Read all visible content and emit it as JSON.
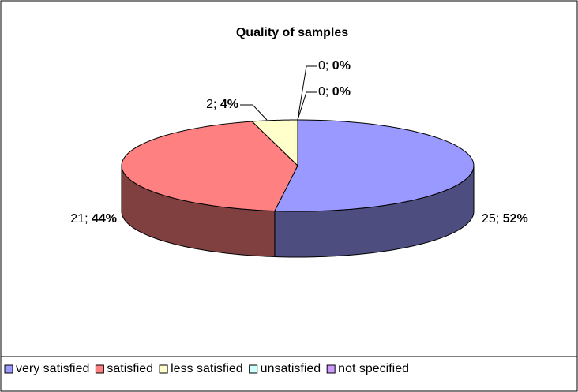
{
  "chart_data": {
    "type": "pie3d",
    "title": "Quality of samples",
    "categories": [
      "very satisfied",
      "satisfied",
      "less satisfied",
      "unsatisfied",
      "not specified"
    ],
    "values": [
      25,
      21,
      2,
      0,
      0
    ],
    "percents": [
      52,
      44,
      4,
      0,
      0
    ],
    "percent_labels": [
      "52%",
      "44%",
      "4%",
      "0%",
      "0%"
    ],
    "label_separator": "; ",
    "colors": [
      "#9999ff",
      "#ff8080",
      "#ffffcc",
      "#ccffff",
      "#cc99ff"
    ],
    "side_colors": [
      "#4d4d80",
      "#804040",
      "#808066",
      "#668080",
      "#664d80"
    ],
    "legend": "bottom"
  }
}
